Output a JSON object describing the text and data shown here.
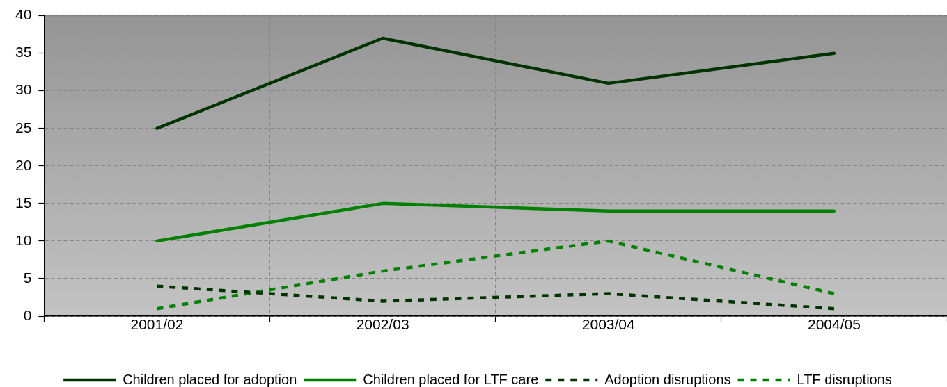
{
  "chart_data": {
    "type": "line",
    "categories": [
      "2001/02",
      "2002/03",
      "2003/04",
      "2004/05"
    ],
    "series": [
      {
        "name": "Children placed for adoption",
        "color": "#003300",
        "values": [
          25,
          37,
          31,
          35
        ]
      },
      {
        "name": "Children placed for LTF care",
        "color": "#008000",
        "values": [
          10,
          15,
          14,
          14
        ]
      },
      {
        "name": "Adoption disruptions",
        "color": "#003300",
        "values": [
          4,
          2,
          3,
          1
        ],
        "line_style": "dashed"
      },
      {
        "name": "LTF disruptions",
        "color": "#008000",
        "values": [
          1,
          6,
          10,
          3
        ],
        "line_style": "dashed"
      }
    ],
    "ylim": [
      0,
      40
    ],
    "yticks": [
      0,
      5,
      10,
      15,
      20,
      25,
      30,
      35,
      40
    ],
    "grid": true,
    "legend": "bottom",
    "line_style": "solid"
  }
}
